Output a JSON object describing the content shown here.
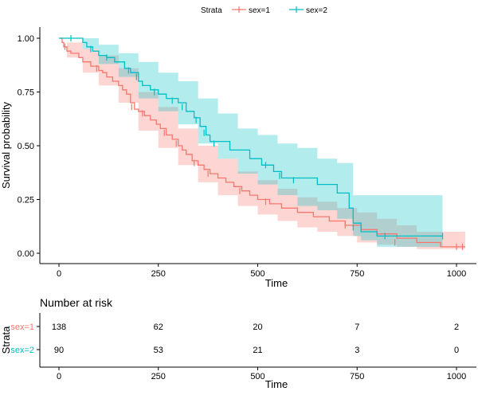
{
  "chart_data": [
    {
      "type": "line",
      "subtype": "kaplan-meier",
      "xlabel": "Time",
      "ylabel": "Survival probability",
      "xlim": [
        0,
        1022
      ],
      "ylim": [
        0,
        1
      ],
      "x_ticks": [
        "0",
        "250",
        "500",
        "750",
        "1000"
      ],
      "y_ticks": [
        "0.00",
        "0.25",
        "0.50",
        "0.75",
        "1.00"
      ],
      "x_tick_values": [
        0,
        250,
        500,
        750,
        1000
      ],
      "y_tick_values": [
        0,
        0.25,
        0.5,
        0.75,
        1
      ],
      "grid": false,
      "legend": {
        "title": "Strata",
        "position": "top",
        "entries": [
          "sex=1",
          "sex=2"
        ]
      },
      "series": [
        {
          "name": "sex=1",
          "color": "#F8766D",
          "band_color": "#F8766D",
          "steps": [
            [
              0,
              1.0
            ],
            [
              8,
              0.98
            ],
            [
              12,
              0.96
            ],
            [
              20,
              0.94
            ],
            [
              30,
              0.93
            ],
            [
              50,
              0.91
            ],
            [
              60,
              0.89
            ],
            [
              80,
              0.87
            ],
            [
              100,
              0.85
            ],
            [
              110,
              0.84
            ],
            [
              120,
              0.82
            ],
            [
              135,
              0.8
            ],
            [
              150,
              0.78
            ],
            [
              160,
              0.76
            ],
            [
              170,
              0.74
            ],
            [
              180,
              0.7
            ],
            [
              190,
              0.67
            ],
            [
              200,
              0.66
            ],
            [
              215,
              0.64
            ],
            [
              230,
              0.62
            ],
            [
              245,
              0.6
            ],
            [
              255,
              0.58
            ],
            [
              270,
              0.55
            ],
            [
              285,
              0.53
            ],
            [
              300,
              0.5
            ],
            [
              310,
              0.48
            ],
            [
              320,
              0.46
            ],
            [
              335,
              0.43
            ],
            [
              350,
              0.41
            ],
            [
              365,
              0.39
            ],
            [
              380,
              0.37
            ],
            [
              400,
              0.35
            ],
            [
              420,
              0.33
            ],
            [
              440,
              0.31
            ],
            [
              460,
              0.29
            ],
            [
              480,
              0.27
            ],
            [
              500,
              0.25
            ],
            [
              530,
              0.23
            ],
            [
              560,
              0.21
            ],
            [
              600,
              0.19
            ],
            [
              640,
              0.17
            ],
            [
              680,
              0.15
            ],
            [
              720,
              0.13
            ],
            [
              760,
              0.11
            ],
            [
              800,
              0.09
            ],
            [
              850,
              0.07
            ],
            [
              900,
              0.05
            ],
            [
              960,
              0.03
            ],
            [
              1022,
              0.03
            ]
          ],
          "lower": [
            [
              0,
              1.0
            ],
            [
              20,
              0.91
            ],
            [
              60,
              0.84
            ],
            [
              100,
              0.78
            ],
            [
              150,
              0.7
            ],
            [
              200,
              0.57
            ],
            [
              250,
              0.49
            ],
            [
              300,
              0.41
            ],
            [
              350,
              0.33
            ],
            [
              400,
              0.27
            ],
            [
              450,
              0.22
            ],
            [
              500,
              0.18
            ],
            [
              550,
              0.15
            ],
            [
              600,
              0.12
            ],
            [
              650,
              0.1
            ],
            [
              700,
              0.08
            ],
            [
              750,
              0.05
            ],
            [
              800,
              0.04
            ],
            [
              850,
              0.03
            ],
            [
              900,
              0.02
            ],
            [
              1022,
              0.01
            ]
          ],
          "upper": [
            [
              0,
              1.0
            ],
            [
              20,
              0.98
            ],
            [
              60,
              0.95
            ],
            [
              100,
              0.92
            ],
            [
              150,
              0.86
            ],
            [
              200,
              0.75
            ],
            [
              250,
              0.68
            ],
            [
              300,
              0.58
            ],
            [
              350,
              0.5
            ],
            [
              400,
              0.44
            ],
            [
              450,
              0.38
            ],
            [
              500,
              0.34
            ],
            [
              550,
              0.3
            ],
            [
              600,
              0.26
            ],
            [
              650,
              0.24
            ],
            [
              700,
              0.21
            ],
            [
              750,
              0.19
            ],
            [
              800,
              0.16
            ],
            [
              850,
              0.13
            ],
            [
              900,
              0.1
            ],
            [
              1022,
              0.06
            ]
          ],
          "censor": [
            [
              15,
              0.96
            ],
            [
              95,
              0.86
            ],
            [
              183,
              0.68
            ],
            [
              210,
              0.65
            ],
            [
              265,
              0.56
            ],
            [
              295,
              0.51
            ],
            [
              340,
              0.42
            ],
            [
              375,
              0.37
            ],
            [
              455,
              0.29
            ],
            [
              520,
              0.24
            ],
            [
              720,
              0.13
            ],
            [
              845,
              0.05
            ],
            [
              1000,
              0.03
            ],
            [
              1015,
              0.03
            ]
          ]
        },
        {
          "name": "sex=2",
          "color": "#00BFC4",
          "band_color": "#00BFC4",
          "steps": [
            [
              0,
              1.0
            ],
            [
              60,
              0.98
            ],
            [
              70,
              0.96
            ],
            [
              85,
              0.94
            ],
            [
              100,
              0.92
            ],
            [
              120,
              0.91
            ],
            [
              140,
              0.89
            ],
            [
              165,
              0.86
            ],
            [
              180,
              0.84
            ],
            [
              200,
              0.8
            ],
            [
              210,
              0.78
            ],
            [
              230,
              0.76
            ],
            [
              250,
              0.74
            ],
            [
              270,
              0.72
            ],
            [
              300,
              0.7
            ],
            [
              320,
              0.66
            ],
            [
              340,
              0.63
            ],
            [
              355,
              0.59
            ],
            [
              370,
              0.55
            ],
            [
              380,
              0.52
            ],
            [
              430,
              0.48
            ],
            [
              480,
              0.44
            ],
            [
              510,
              0.41
            ],
            [
              540,
              0.38
            ],
            [
              560,
              0.35
            ],
            [
              650,
              0.32
            ],
            [
              700,
              0.28
            ],
            [
              730,
              0.21
            ],
            [
              740,
              0.14
            ],
            [
              760,
              0.1
            ],
            [
              800,
              0.08
            ],
            [
              965,
              0.08
            ]
          ],
          "lower": [
            [
              0,
              1.0
            ],
            [
              60,
              0.95
            ],
            [
              100,
              0.88
            ],
            [
              150,
              0.82
            ],
            [
              200,
              0.72
            ],
            [
              250,
              0.66
            ],
            [
              300,
              0.6
            ],
            [
              350,
              0.51
            ],
            [
              400,
              0.44
            ],
            [
              450,
              0.37
            ],
            [
              500,
              0.32
            ],
            [
              550,
              0.27
            ],
            [
              600,
              0.22
            ],
            [
              650,
              0.2
            ],
            [
              700,
              0.16
            ],
            [
              740,
              0.08
            ],
            [
              760,
              0.06
            ],
            [
              800,
              0.03
            ],
            [
              965,
              0.03
            ]
          ],
          "upper": [
            [
              0,
              1.0
            ],
            [
              60,
              1.0
            ],
            [
              100,
              0.97
            ],
            [
              150,
              0.93
            ],
            [
              200,
              0.89
            ],
            [
              250,
              0.84
            ],
            [
              300,
              0.8
            ],
            [
              350,
              0.72
            ],
            [
              400,
              0.65
            ],
            [
              450,
              0.58
            ],
            [
              500,
              0.55
            ],
            [
              550,
              0.51
            ],
            [
              600,
              0.49
            ],
            [
              650,
              0.44
            ],
            [
              700,
              0.42
            ],
            [
              740,
              0.27
            ],
            [
              800,
              0.27
            ],
            [
              965,
              0.27
            ]
          ],
          "censor": [
            [
              30,
              1.0
            ],
            [
              80,
              0.95
            ],
            [
              120,
              0.91
            ],
            [
              175,
              0.85
            ],
            [
              195,
              0.82
            ],
            [
              240,
              0.75
            ],
            [
              285,
              0.71
            ],
            [
              310,
              0.68
            ],
            [
              345,
              0.62
            ],
            [
              365,
              0.56
            ],
            [
              390,
              0.51
            ],
            [
              520,
              0.41
            ],
            [
              555,
              0.36
            ],
            [
              590,
              0.34
            ],
            [
              740,
              0.12
            ],
            [
              820,
              0.08
            ],
            [
              965,
              0.08
            ]
          ]
        }
      ]
    },
    {
      "type": "table",
      "title": "Number at risk",
      "xlabel": "Time",
      "ylabel": "Strata",
      "x_ticks": [
        "0",
        "250",
        "500",
        "750",
        "1000"
      ],
      "x_tick_values": [
        0,
        250,
        500,
        750,
        1000
      ],
      "rows": [
        {
          "name": "sex=1",
          "color": "#F8766D",
          "values": [
            "138",
            "62",
            "20",
            "7",
            "2"
          ]
        },
        {
          "name": "sex=2",
          "color": "#00BFC4",
          "values": [
            "90",
            "53",
            "21",
            "3",
            "0"
          ]
        }
      ]
    }
  ]
}
